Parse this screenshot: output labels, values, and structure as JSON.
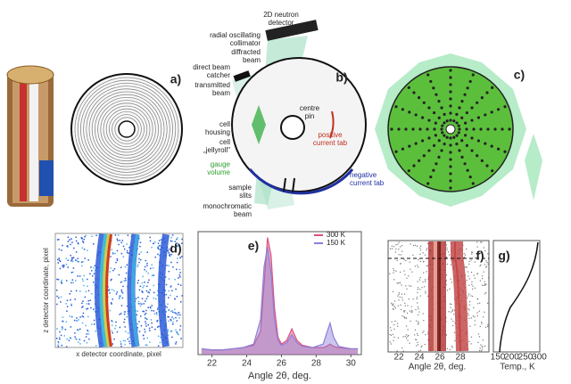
{
  "chart_data": {
    "type": "line",
    "panel_label": "e)",
    "xlabel": "Angle 2θ, deg.",
    "x": [
      21.4,
      22,
      22.6,
      23.2,
      23.8,
      24.4,
      24.8,
      25.0,
      25.2,
      25.4,
      25.6,
      25.8,
      26.0,
      26.3,
      26.6,
      26.9,
      27.2,
      27.8,
      28.4,
      28.6,
      28.8,
      29.0,
      29.3,
      30.0,
      30.4
    ],
    "series": [
      {
        "name": "300 K",
        "color": "#e0507a",
        "values": [
          5,
          4,
          4,
          5,
          6,
          8,
          20,
          60,
          100,
          85,
          40,
          15,
          9,
          12,
          22,
          12,
          8,
          6,
          6,
          7,
          9,
          7,
          6,
          5,
          5
        ]
      },
      {
        "name": "150 K",
        "color": "#8c7fd8",
        "values": [
          5,
          4,
          4,
          5,
          6,
          9,
          30,
          75,
          92,
          70,
          30,
          12,
          8,
          10,
          17,
          10,
          7,
          6,
          9,
          18,
          27,
          15,
          7,
          5,
          5
        ]
      }
    ],
    "xlim": [
      21.2,
      30.6
    ],
    "ylim": [
      0,
      105
    ],
    "xticks": [
      22,
      24,
      26,
      28,
      30
    ]
  },
  "panel_labels": {
    "a": "a)",
    "b": "b)",
    "c": "c)",
    "d": "d)",
    "f": "f)",
    "g": "g)"
  },
  "panel_b": {
    "detector": [
      "2D neutron",
      "detector"
    ],
    "collimator": [
      "radial oscillating",
      "collimator"
    ],
    "diffracted": [
      "diffracted",
      "beam"
    ],
    "catcher": [
      "direct beam",
      "catcher"
    ],
    "transmitted": [
      "transmitted",
      "beam"
    ],
    "housing": [
      "cell",
      "housing"
    ],
    "jellyroll": [
      "cell",
      "„jellyroll\""
    ],
    "gauge": [
      "gauge",
      "volume"
    ],
    "pin": [
      "centre",
      "pin"
    ],
    "positive": [
      "positive",
      "current tab"
    ],
    "negative": [
      "negative",
      "current tab"
    ],
    "slits": [
      "sample",
      "slits"
    ],
    "mono": [
      "monochromatic",
      "beam"
    ]
  },
  "panel_d": {
    "ylabel": "z detector coordinate, pixel",
    "xlabel": "x detector coordinate, pixel"
  },
  "panel_f": {
    "xlabel": "Angle 2θ, deg.",
    "xticks": [
      "22",
      "24",
      "26",
      "28"
    ]
  },
  "panel_g": {
    "xlabel": "Temp., K",
    "xticks": [
      "150",
      "200",
      "250",
      "300"
    ]
  }
}
